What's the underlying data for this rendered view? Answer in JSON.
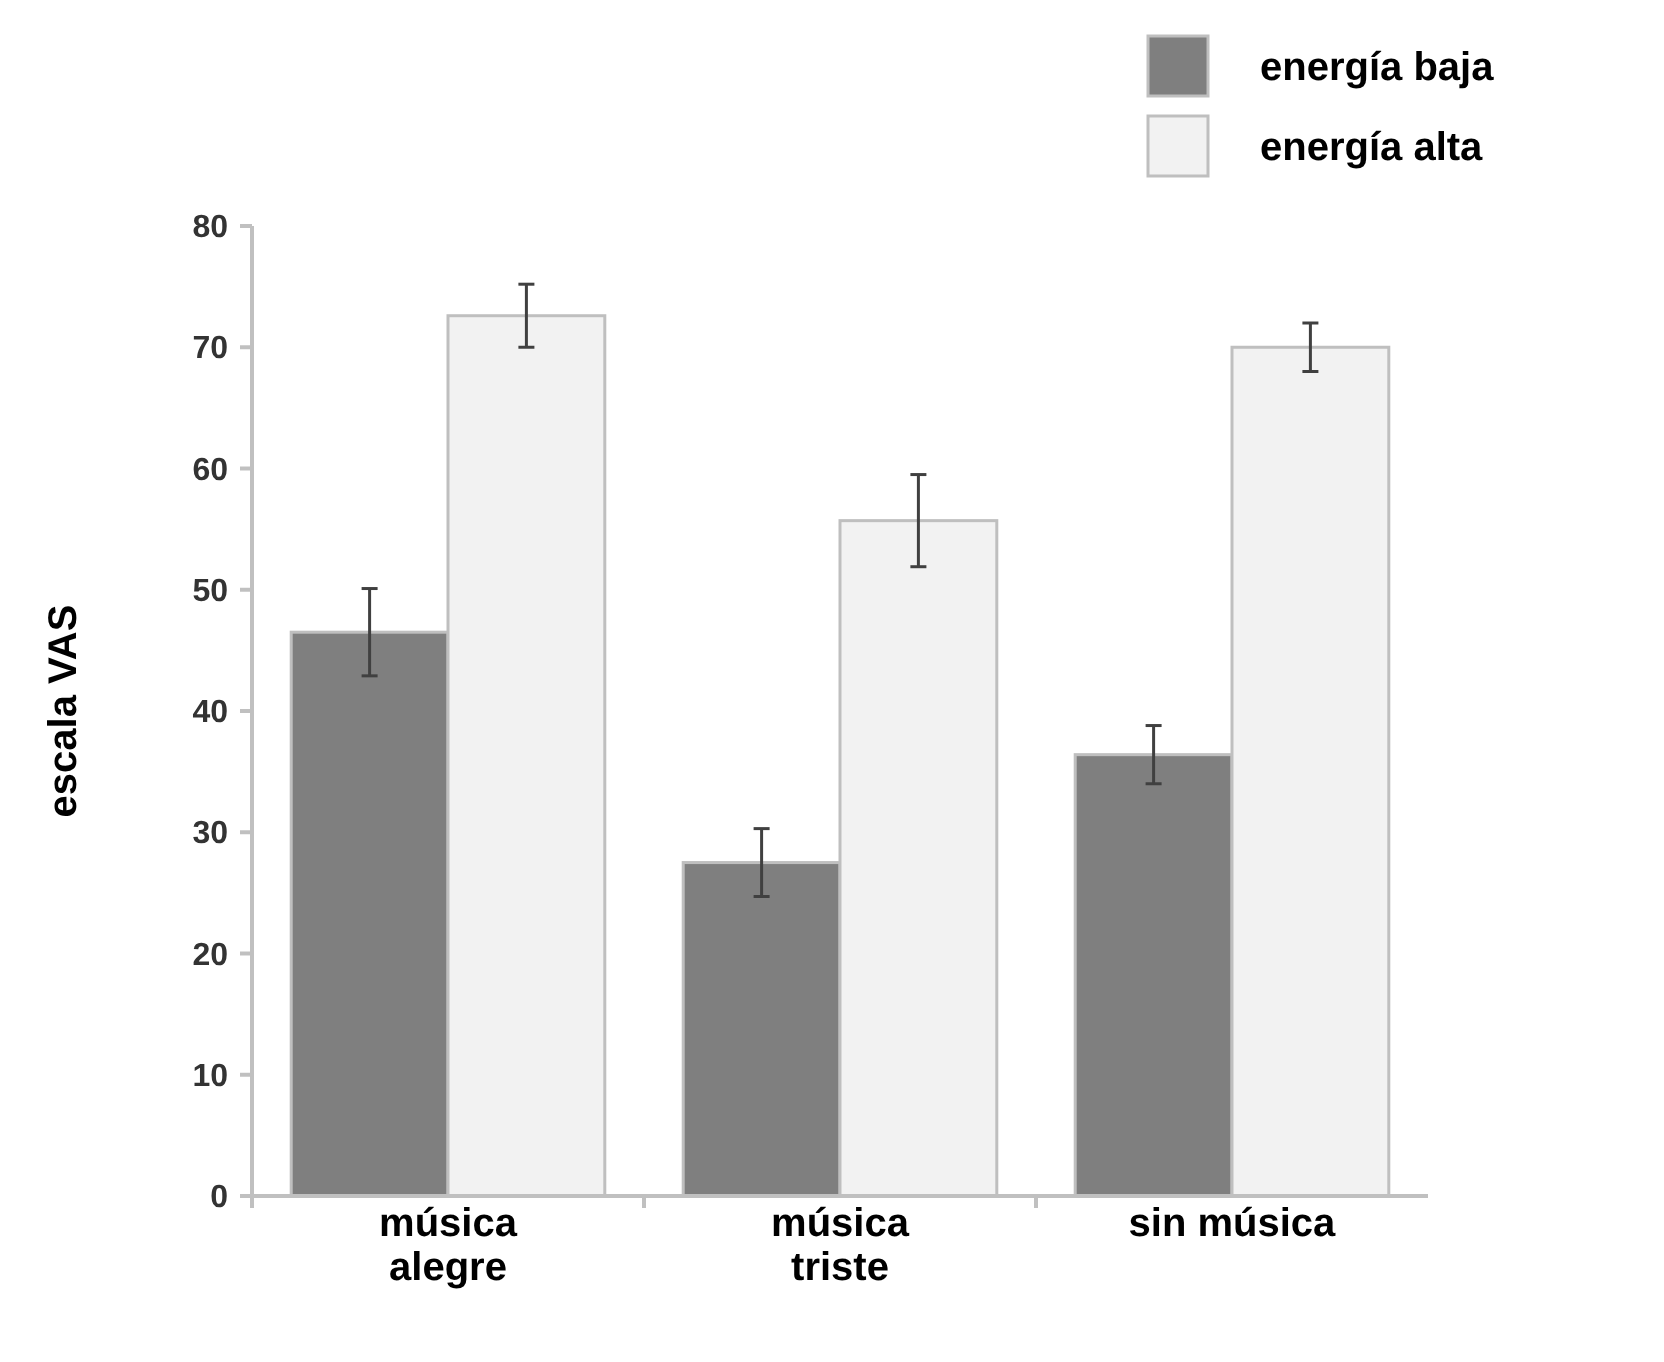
{
  "chart_data": {
    "type": "bar",
    "ylabel": "escala VAS",
    "categories": [
      "música\nalegre",
      "música\ntriste",
      "sin música"
    ],
    "series": [
      {
        "name": "energía baja",
        "color": "#7f7f7f",
        "values": [
          46.5,
          27.5,
          36.4
        ],
        "errors": [
          3.6,
          2.8,
          2.4
        ]
      },
      {
        "name": "energía alta",
        "color": "#f2f2f2",
        "values": [
          72.6,
          55.7,
          70.0
        ],
        "errors": [
          2.6,
          3.8,
          2.0
        ]
      }
    ],
    "ylim": [
      0,
      80
    ],
    "yticks": [
      0,
      10,
      20,
      30,
      40,
      50,
      60,
      70,
      80
    ],
    "legend": "top right",
    "grid": false
  }
}
